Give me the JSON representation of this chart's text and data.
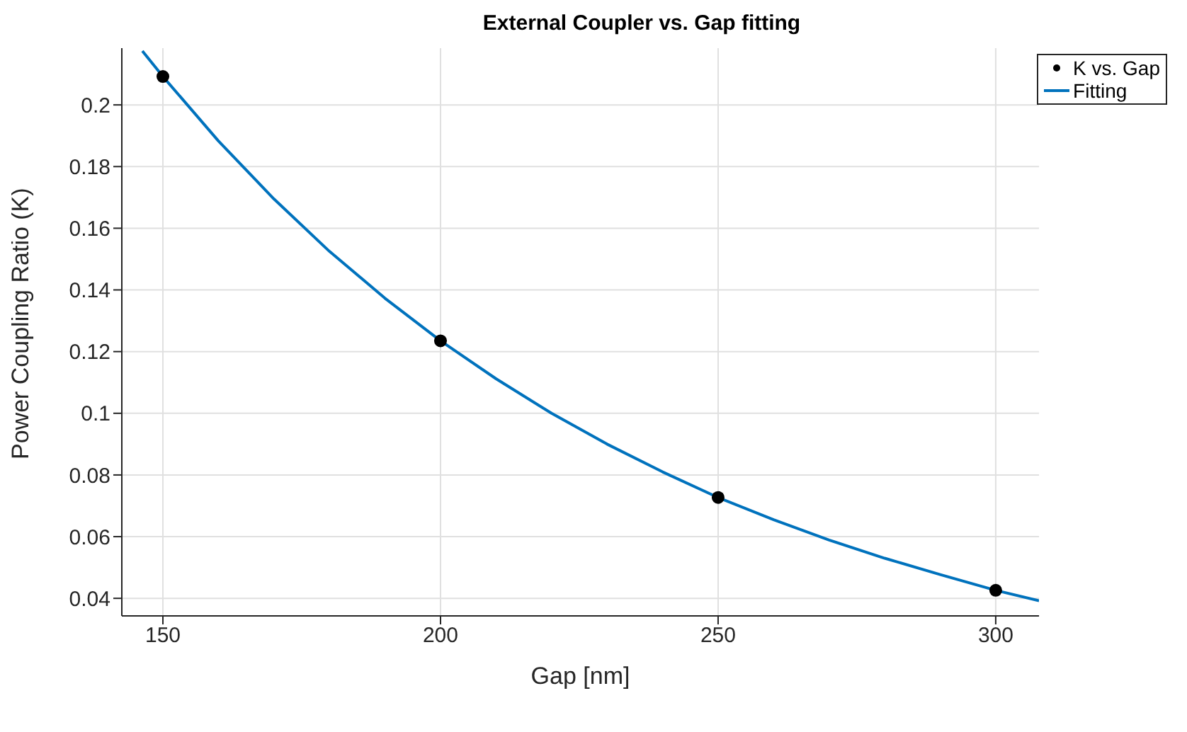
{
  "chart_data": {
    "type": "scatter",
    "title": "External Coupler vs. Gap fitting",
    "xlabel": "Gap [nm]",
    "ylabel": "Power Coupling Ratio (K)",
    "xlim": [
      142.6,
      307.8
    ],
    "xticks": [
      150,
      200,
      250,
      300
    ],
    "ylim": [
      0.0343,
      0.2184
    ],
    "yticks": [
      0.04,
      0.06,
      0.08,
      0.1,
      0.12,
      0.14,
      0.16,
      0.18,
      0.2
    ],
    "grid": true,
    "legend": "top right",
    "series": [
      {
        "name": "K vs. Gap",
        "marker": "circle",
        "color": "#000000",
        "x": [
          150,
          200,
          250,
          300
        ],
        "values": [
          0.2092,
          0.1235,
          0.0727,
          0.0426
        ]
      },
      {
        "name": "Fitting",
        "type": "line",
        "marker": "none",
        "color": "#0072bd",
        "x": [
          146.3,
          150,
          160,
          170,
          180,
          190,
          200,
          210,
          220,
          230,
          240,
          250,
          260,
          270,
          280,
          290,
          300,
          307.8
        ],
        "values": [
          0.2175,
          0.2092,
          0.1883,
          0.1695,
          0.1525,
          0.1373,
          0.1235,
          0.1112,
          0.1,
          0.09,
          0.081,
          0.0727,
          0.0655,
          0.0589,
          0.053,
          0.0477,
          0.0426,
          0.0392
        ]
      }
    ]
  }
}
